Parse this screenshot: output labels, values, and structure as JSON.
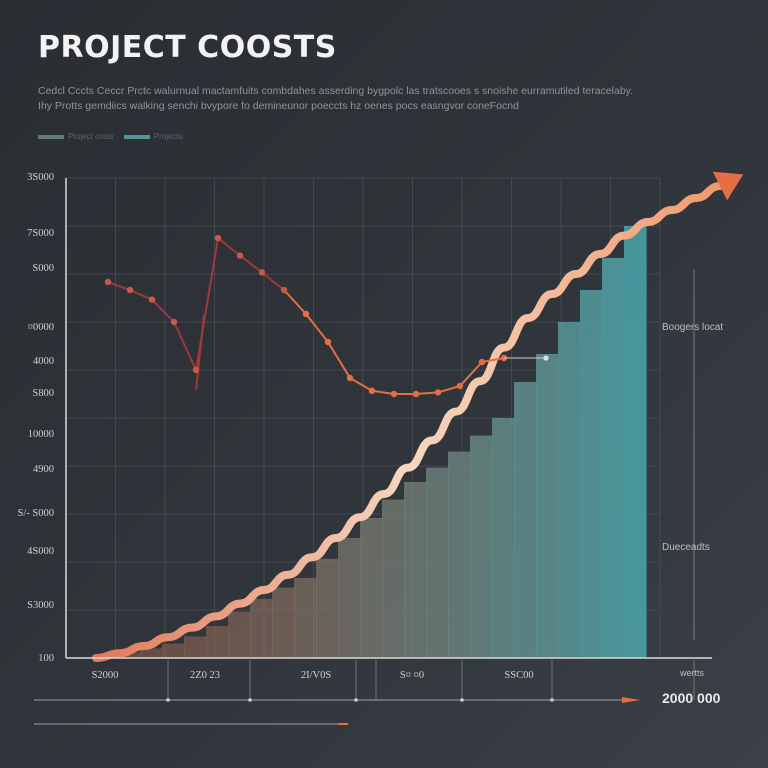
{
  "title": "PROJECT COOSTS",
  "subtitle": "Cedcl Cccts Ceccr Prctc walurnual mactamfuits combdahes asserding bygpolc las tratscooes s snoishe eurramutiled teracelaby. Ihy Protts gemdiics walking senchi bvypore fo demineunor poeccts hz oenes pocs easngvor coneFocnd",
  "legend": [
    {
      "label": "Project costs",
      "color": "#5f7d78"
    },
    {
      "label": "Projects",
      "color": "#4f9a98"
    }
  ],
  "side_labels": {
    "upper": "Boogers locat",
    "lower": "Dueceadts",
    "x_unit": "wertts"
  },
  "total_label": "2000 000",
  "colors": {
    "background": "#2e3237",
    "line": "#e46f45",
    "line_dark": "#9a3a3a",
    "arrow": "#f0a57a",
    "bar_teal": "#4a9aa0"
  },
  "chart_data": {
    "type": "bar",
    "title": "PROJECT COOSTS",
    "y_tick_labels": [
      "3S000",
      "7S000",
      "S000",
      "¤0000",
      "4000",
      "S800",
      "10000",
      "4900",
      "S/- S000",
      "4S000",
      "S3000",
      "100"
    ],
    "x_tick_labels": [
      "S2000",
      "2Z0 23",
      "2I/V0S",
      "S¤ ¤0",
      "SSC00"
    ],
    "bars": {
      "name": "",
      "values": [
        0.8,
        4,
        7,
        12,
        18,
        27,
        40,
        58,
        74,
        88,
        100,
        124,
        150,
        175,
        198,
        220,
        238,
        258,
        278,
        300,
        345,
        380,
        420,
        460,
        500,
        540
      ]
    },
    "trend_curve": {
      "name": "",
      "values": [
        0,
        6,
        15,
        26,
        38,
        52,
        68,
        85,
        104,
        126,
        150,
        176,
        205,
        238,
        272,
        308,
        346,
        388,
        425,
        455,
        480,
        505,
        528,
        545,
        560,
        575,
        590
      ]
    },
    "line_series": {
      "name": "",
      "points": [
        [
          1,
          470
        ],
        [
          2,
          460
        ],
        [
          3,
          448
        ],
        [
          4,
          420
        ],
        [
          5,
          360
        ],
        [
          6,
          525
        ],
        [
          7,
          503
        ],
        [
          8,
          482
        ],
        [
          9,
          460
        ],
        [
          10,
          430
        ],
        [
          11,
          395
        ],
        [
          12,
          350
        ],
        [
          13,
          334
        ],
        [
          14,
          330
        ],
        [
          15,
          330
        ],
        [
          16,
          332
        ],
        [
          17,
          340
        ],
        [
          18,
          370
        ],
        [
          19,
          375
        ]
      ],
      "spur": [
        [
          5,
          420
        ],
        [
          5,
          360
        ]
      ]
    },
    "xlim": [
      0,
      27
    ],
    "ylim": [
      0,
      600
    ],
    "grid": true
  }
}
